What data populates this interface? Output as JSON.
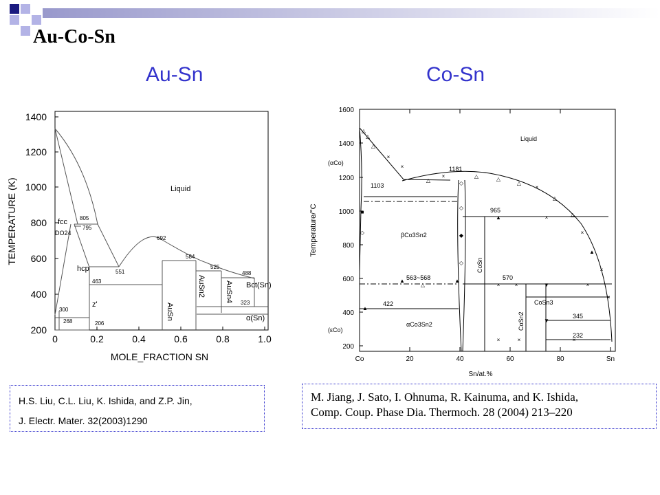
{
  "slide": {
    "title": "Au-Co-Sn",
    "subtitle_left": "Au-Sn",
    "subtitle_right": "Co-Sn",
    "accent_color": "#3333cc",
    "deco_colors": [
      "#1a1a80",
      "#b3b3e6"
    ]
  },
  "au_sn": {
    "y_axis_label": "TEMPERATURE (K)",
    "x_axis_label": "MOLE_FRACTION SN",
    "y_ticks": [
      "1400",
      "1200",
      "1000",
      "800",
      "600",
      "400",
      "200"
    ],
    "x_ticks": [
      "0",
      "0.2",
      "0.4",
      "0.6",
      "0.8",
      "1.0"
    ],
    "labels": {
      "liquid": "Liquid",
      "fcc": "fcc",
      "do24": "DO24",
      "hcp": "hcp",
      "zeta": "z'",
      "ausn": "AuSn",
      "ausn2": "AuSn2",
      "ausn4": "AuSn4",
      "bct_sn": "Bct(Sn)",
      "alpha_sn": "α(Sn)",
      "t805": "805",
      "t795": "795",
      "t692": "692",
      "t584": "584",
      "t551": "551",
      "t525": "525",
      "t488": "488",
      "t463": "463",
      "t323": "323",
      "t268": "268",
      "t206": "206",
      "t300": "300"
    }
  },
  "co_sn": {
    "y_axis_label": "Temperature/°C",
    "x_axis_label": "Sn/at.%",
    "y_ticks": [
      "1600",
      "1400",
      "1200",
      "1000",
      "800",
      "600",
      "400",
      "200"
    ],
    "x_ticks": [
      "Co",
      "20",
      "40",
      "60",
      "80",
      "Sn"
    ],
    "labels": {
      "liquid": "Liquid",
      "alpha_co": "(αCo)",
      "eps_co": "(εCo)",
      "t1181": "1181",
      "t1103": "1103",
      "t965": "965",
      "beta": "βCo3Sn2",
      "cosn": "CoSn",
      "t563": "563~568",
      "t570": "570",
      "cosn3": "CoSn3",
      "cosn2": "CoSn2",
      "t422": "422",
      "alpha_co3sn2": "αCo3Sn2",
      "t345": "345",
      "t232": "232"
    }
  },
  "references": {
    "left_line1": "H.S. Liu, C.L. Liu, K. Ishida, and  Z.P. Jin,",
    "left_line2": "J. Electr. Mater. 32(2003)1290",
    "right_line1": "M. Jiang, J. Sato, I. Ohnuma, R. Kainuma, and K. Ishida,",
    "right_line2": "Comp. Coup. Phase Dia. Thermoch.  28 (2004) 213–220"
  }
}
